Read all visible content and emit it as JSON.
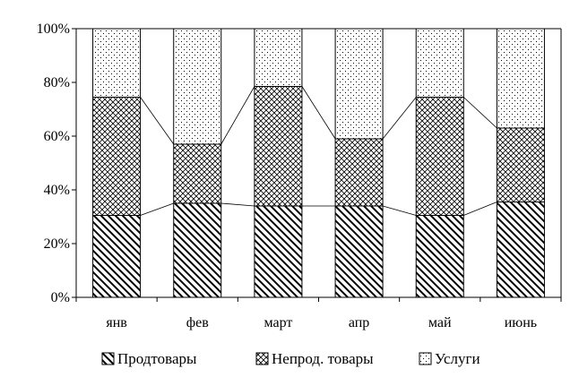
{
  "chart_data": {
    "type": "bar",
    "stacked": true,
    "normalized_percent": true,
    "categories": [
      "янв",
      "фев",
      "март",
      "апр",
      "май",
      "июнь"
    ],
    "series": [
      {
        "name": "Продтовары",
        "values": [
          30.5,
          35,
          34,
          34,
          30.5,
          35.5
        ],
        "pattern": "diagonal-hatch"
      },
      {
        "name": "Непрод. товары",
        "values": [
          44,
          22,
          44.5,
          25,
          44,
          27.5
        ],
        "pattern": "crosshatch"
      },
      {
        "name": "Услуги",
        "values": [
          25.5,
          43,
          21.5,
          41,
          25.5,
          37
        ],
        "pattern": "dots"
      }
    ],
    "yticks": [
      "0%",
      "20%",
      "40%",
      "60%",
      "80%",
      "100%"
    ],
    "ylim": [
      0,
      100
    ],
    "series_lines": true,
    "grid": false,
    "legend_position": "bottom"
  }
}
